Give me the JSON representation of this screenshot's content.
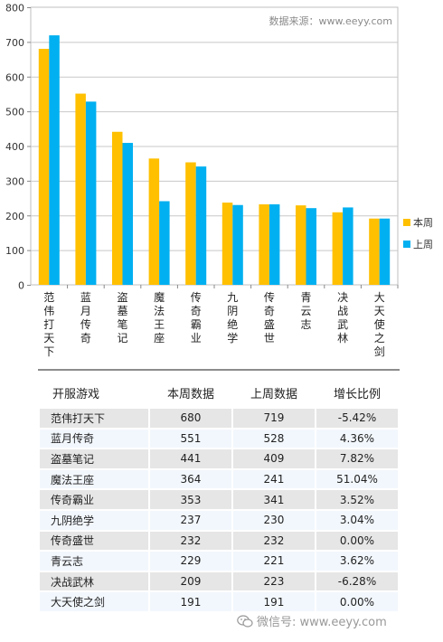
{
  "chart_data": {
    "type": "bar",
    "source_text": "数据来源：www.eeyy.com",
    "categories": [
      "范伟打天下",
      "蓝月传奇",
      "盗墓笔记",
      "魔法王座",
      "传奇霸业",
      "九阴绝学",
      "传奇盛世",
      "青云志",
      "决战武林",
      "大天使之剑"
    ],
    "series": [
      {
        "name": "本周",
        "color": "#FFC000",
        "values": [
          680,
          551,
          441,
          364,
          353,
          237,
          232,
          229,
          209,
          191
        ]
      },
      {
        "name": "上周",
        "color": "#00B0F0",
        "values": [
          719,
          528,
          409,
          241,
          341,
          230,
          232,
          221,
          223,
          191
        ]
      }
    ],
    "ylim": [
      0,
      800
    ],
    "yticks": [
      0,
      100,
      200,
      300,
      400,
      500,
      600,
      700,
      800
    ],
    "grid": true,
    "legend_position": "right"
  },
  "table": {
    "headers": [
      "开服游戏",
      "本周数据",
      "上周数据",
      "增长比例"
    ],
    "rows": [
      [
        "范伟打天下",
        "680",
        "719",
        "-5.42%"
      ],
      [
        "蓝月传奇",
        "551",
        "528",
        "4.36%"
      ],
      [
        "盗墓笔记",
        "441",
        "409",
        "7.82%"
      ],
      [
        "魔法王座",
        "364",
        "241",
        "51.04%"
      ],
      [
        "传奇霸业",
        "353",
        "341",
        "3.52%"
      ],
      [
        "九阴绝学",
        "237",
        "230",
        "3.04%"
      ],
      [
        "传奇盛世",
        "232",
        "232",
        "0.00%"
      ],
      [
        "青云志",
        "229",
        "221",
        "3.62%"
      ],
      [
        "决战武林",
        "209",
        "223",
        "-6.28%"
      ],
      [
        "大天使之剑",
        "191",
        "191",
        "0.00%"
      ]
    ]
  },
  "watermark": {
    "text": "微信号: www.eeyy.com",
    "icon": "wechat-icon"
  }
}
